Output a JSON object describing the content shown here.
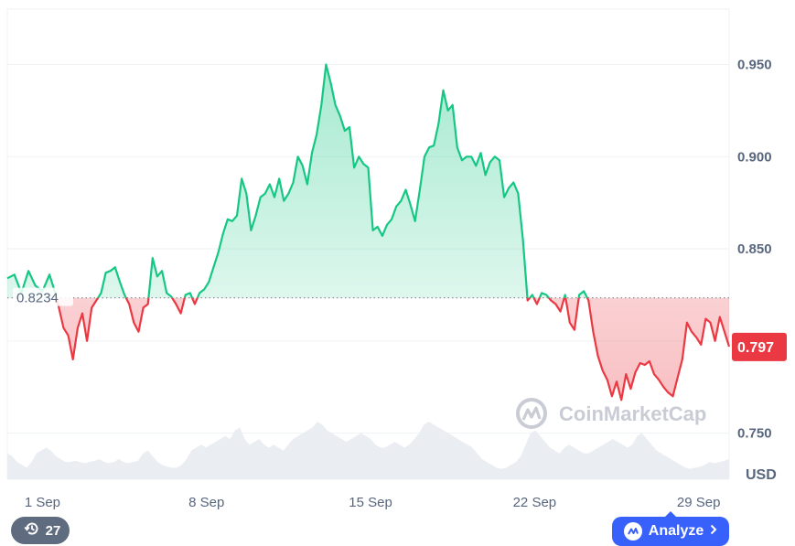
{
  "chart_data": {
    "type": "area",
    "unit": "USD",
    "ylim": [
      0.725,
      0.98
    ],
    "y_ticks": [
      {
        "value": 0.95,
        "label": "0.950"
      },
      {
        "value": 0.9,
        "label": "0.900"
      },
      {
        "value": 0.85,
        "label": "0.850"
      },
      {
        "value": 0.75,
        "label": "0.750"
      }
    ],
    "x_range_days": [
      0,
      30.8
    ],
    "x_ticks": [
      {
        "day": 1.5,
        "label": "1 Sep"
      },
      {
        "day": 8.5,
        "label": "8 Sep"
      },
      {
        "day": 15.5,
        "label": "15 Sep"
      },
      {
        "day": 22.5,
        "label": "22 Sep"
      },
      {
        "day": 29.5,
        "label": "29 Sep"
      }
    ],
    "open_price": {
      "value": 0.8234,
      "label": "0.8234"
    },
    "current_price": {
      "value": 0.797,
      "label": "0.797"
    },
    "series": [
      {
        "x": [
          0,
          0.3,
          0.6,
          0.9,
          1.2,
          1.5,
          1.8,
          2.0,
          2.2,
          2.4,
          2.6,
          2.8,
          3.0,
          3.2,
          3.4,
          3.6,
          3.8,
          4.0,
          4.2,
          4.4,
          4.6,
          4.8,
          5.0,
          5.2,
          5.4,
          5.6,
          5.8,
          6.0,
          6.2,
          6.4,
          6.6,
          6.8,
          7.0,
          7.2,
          7.4,
          7.6,
          7.8,
          8.0,
          8.2,
          8.4,
          8.6,
          8.8,
          9.0,
          9.2,
          9.4,
          9.6,
          9.8,
          10.0,
          10.2,
          10.4,
          10.6,
          10.8,
          11.0,
          11.2,
          11.4,
          11.6,
          11.8,
          12.0,
          12.2,
          12.4,
          12.6,
          12.8,
          13.0,
          13.2,
          13.4,
          13.6,
          13.8,
          14.0,
          14.2,
          14.4,
          14.6,
          14.8,
          15.0,
          15.2,
          15.4,
          15.6,
          15.8,
          16.0,
          16.2,
          16.4,
          16.6,
          16.8,
          17.0,
          17.2,
          17.4,
          17.6,
          17.8,
          18.0,
          18.2,
          18.4,
          18.6,
          18.8,
          19.0,
          19.2,
          19.4,
          19.6,
          19.8,
          20.0,
          20.2,
          20.4,
          20.6,
          20.8,
          21.0,
          21.2,
          21.4,
          21.6,
          21.8,
          22.0,
          22.2,
          22.4,
          22.6,
          22.8,
          23.0,
          23.2,
          23.4,
          23.6,
          23.8,
          24.0,
          24.2,
          24.4,
          24.6,
          24.8,
          25.0,
          25.2,
          25.4,
          25.6,
          25.8,
          26.0,
          26.2,
          26.4,
          26.6,
          26.8,
          27.0,
          27.2,
          27.4,
          27.6,
          27.8,
          28.0,
          28.2,
          28.4,
          28.6,
          28.8,
          29.0,
          29.2,
          29.4,
          29.6,
          29.8,
          30.0,
          30.2,
          30.4,
          30.6,
          30.8
        ],
        "values": [
          0.834,
          0.836,
          0.826,
          0.838,
          0.83,
          0.827,
          0.836,
          0.828,
          0.818,
          0.807,
          0.803,
          0.79,
          0.807,
          0.815,
          0.8,
          0.818,
          0.822,
          0.826,
          0.837,
          0.838,
          0.84,
          0.832,
          0.825,
          0.82,
          0.81,
          0.805,
          0.818,
          0.82,
          0.845,
          0.835,
          0.838,
          0.826,
          0.824,
          0.82,
          0.815,
          0.825,
          0.826,
          0.82,
          0.826,
          0.828,
          0.832,
          0.84,
          0.848,
          0.858,
          0.866,
          0.865,
          0.868,
          0.888,
          0.88,
          0.86,
          0.868,
          0.878,
          0.88,
          0.885,
          0.878,
          0.888,
          0.876,
          0.88,
          0.886,
          0.9,
          0.895,
          0.885,
          0.902,
          0.912,
          0.928,
          0.95,
          0.94,
          0.928,
          0.922,
          0.914,
          0.916,
          0.894,
          0.9,
          0.896,
          0.894,
          0.86,
          0.862,
          0.857,
          0.863,
          0.866,
          0.873,
          0.876,
          0.882,
          0.874,
          0.865,
          0.882,
          0.9,
          0.905,
          0.906,
          0.918,
          0.936,
          0.925,
          0.928,
          0.905,
          0.898,
          0.9,
          0.9,
          0.895,
          0.902,
          0.89,
          0.897,
          0.9,
          0.898,
          0.878,
          0.883,
          0.886,
          0.88,
          0.855,
          0.822,
          0.825,
          0.82,
          0.826,
          0.825,
          0.822,
          0.82,
          0.816,
          0.825,
          0.81,
          0.806,
          0.825,
          0.827,
          0.822,
          0.805,
          0.792,
          0.784,
          0.779,
          0.77,
          0.778,
          0.768,
          0.782,
          0.774,
          0.783,
          0.788,
          0.787,
          0.789,
          0.782,
          0.779,
          0.775,
          0.772,
          0.77,
          0.78,
          0.79,
          0.81,
          0.805,
          0.802,
          0.798,
          0.812,
          0.81,
          0.8,
          0.813,
          0.805,
          0.797
        ]
      }
    ],
    "volume": {
      "values": [
        0.45,
        0.4,
        0.3,
        0.25,
        0.2,
        0.3,
        0.45,
        0.5,
        0.55,
        0.5,
        0.4,
        0.35,
        0.3,
        0.3,
        0.32,
        0.3,
        0.28,
        0.3,
        0.32,
        0.35,
        0.3,
        0.28,
        0.3,
        0.35,
        0.3,
        0.28,
        0.3,
        0.32,
        0.45,
        0.5,
        0.4,
        0.3,
        0.25,
        0.22,
        0.2,
        0.2,
        0.25,
        0.35,
        0.5,
        0.55,
        0.6,
        0.55,
        0.6,
        0.65,
        0.7,
        0.75,
        0.7,
        0.85,
        0.9,
        0.7,
        0.6,
        0.65,
        0.7,
        0.6,
        0.55,
        0.6,
        0.55,
        0.5,
        0.6,
        0.7,
        0.75,
        0.8,
        0.85,
        0.9,
        1.0,
        0.95,
        0.85,
        0.8,
        0.75,
        0.7,
        0.65,
        0.7,
        0.75,
        0.8,
        0.75,
        0.7,
        0.6,
        0.55,
        0.55,
        0.6,
        0.65,
        0.6,
        0.55,
        0.6,
        0.7,
        0.8,
        0.95,
        1.0,
        0.95,
        0.9,
        0.85,
        0.8,
        0.75,
        0.7,
        0.65,
        0.6,
        0.55,
        0.45,
        0.35,
        0.3,
        0.25,
        0.2,
        0.18,
        0.2,
        0.25,
        0.3,
        0.4,
        0.6,
        0.8,
        0.85,
        0.75,
        0.65,
        0.55,
        0.5,
        0.45,
        0.55,
        0.6,
        0.55,
        0.5,
        0.45,
        0.45,
        0.5,
        0.55,
        0.6,
        0.65,
        0.7,
        0.65,
        0.6,
        0.55,
        0.6,
        0.75,
        0.8,
        0.7,
        0.6,
        0.5,
        0.45,
        0.4,
        0.35,
        0.3,
        0.25,
        0.2,
        0.18,
        0.2,
        0.22,
        0.25,
        0.3,
        0.28,
        0.3,
        0.32,
        0.35
      ]
    }
  },
  "watermark": {
    "text": "CoinMarketCap"
  },
  "colors": {
    "up": "#16c784",
    "down": "#ea3943",
    "accent": "#3861fb",
    "history_bg": "#5f6b7e"
  },
  "controls": {
    "history_count": "27",
    "history_icon": "history-clock-icon",
    "analyze_label": "Analyze",
    "analyze_icon": "coinmarketcap-logo-icon",
    "analyze_arrow_icon": "chevron-right-icon"
  }
}
